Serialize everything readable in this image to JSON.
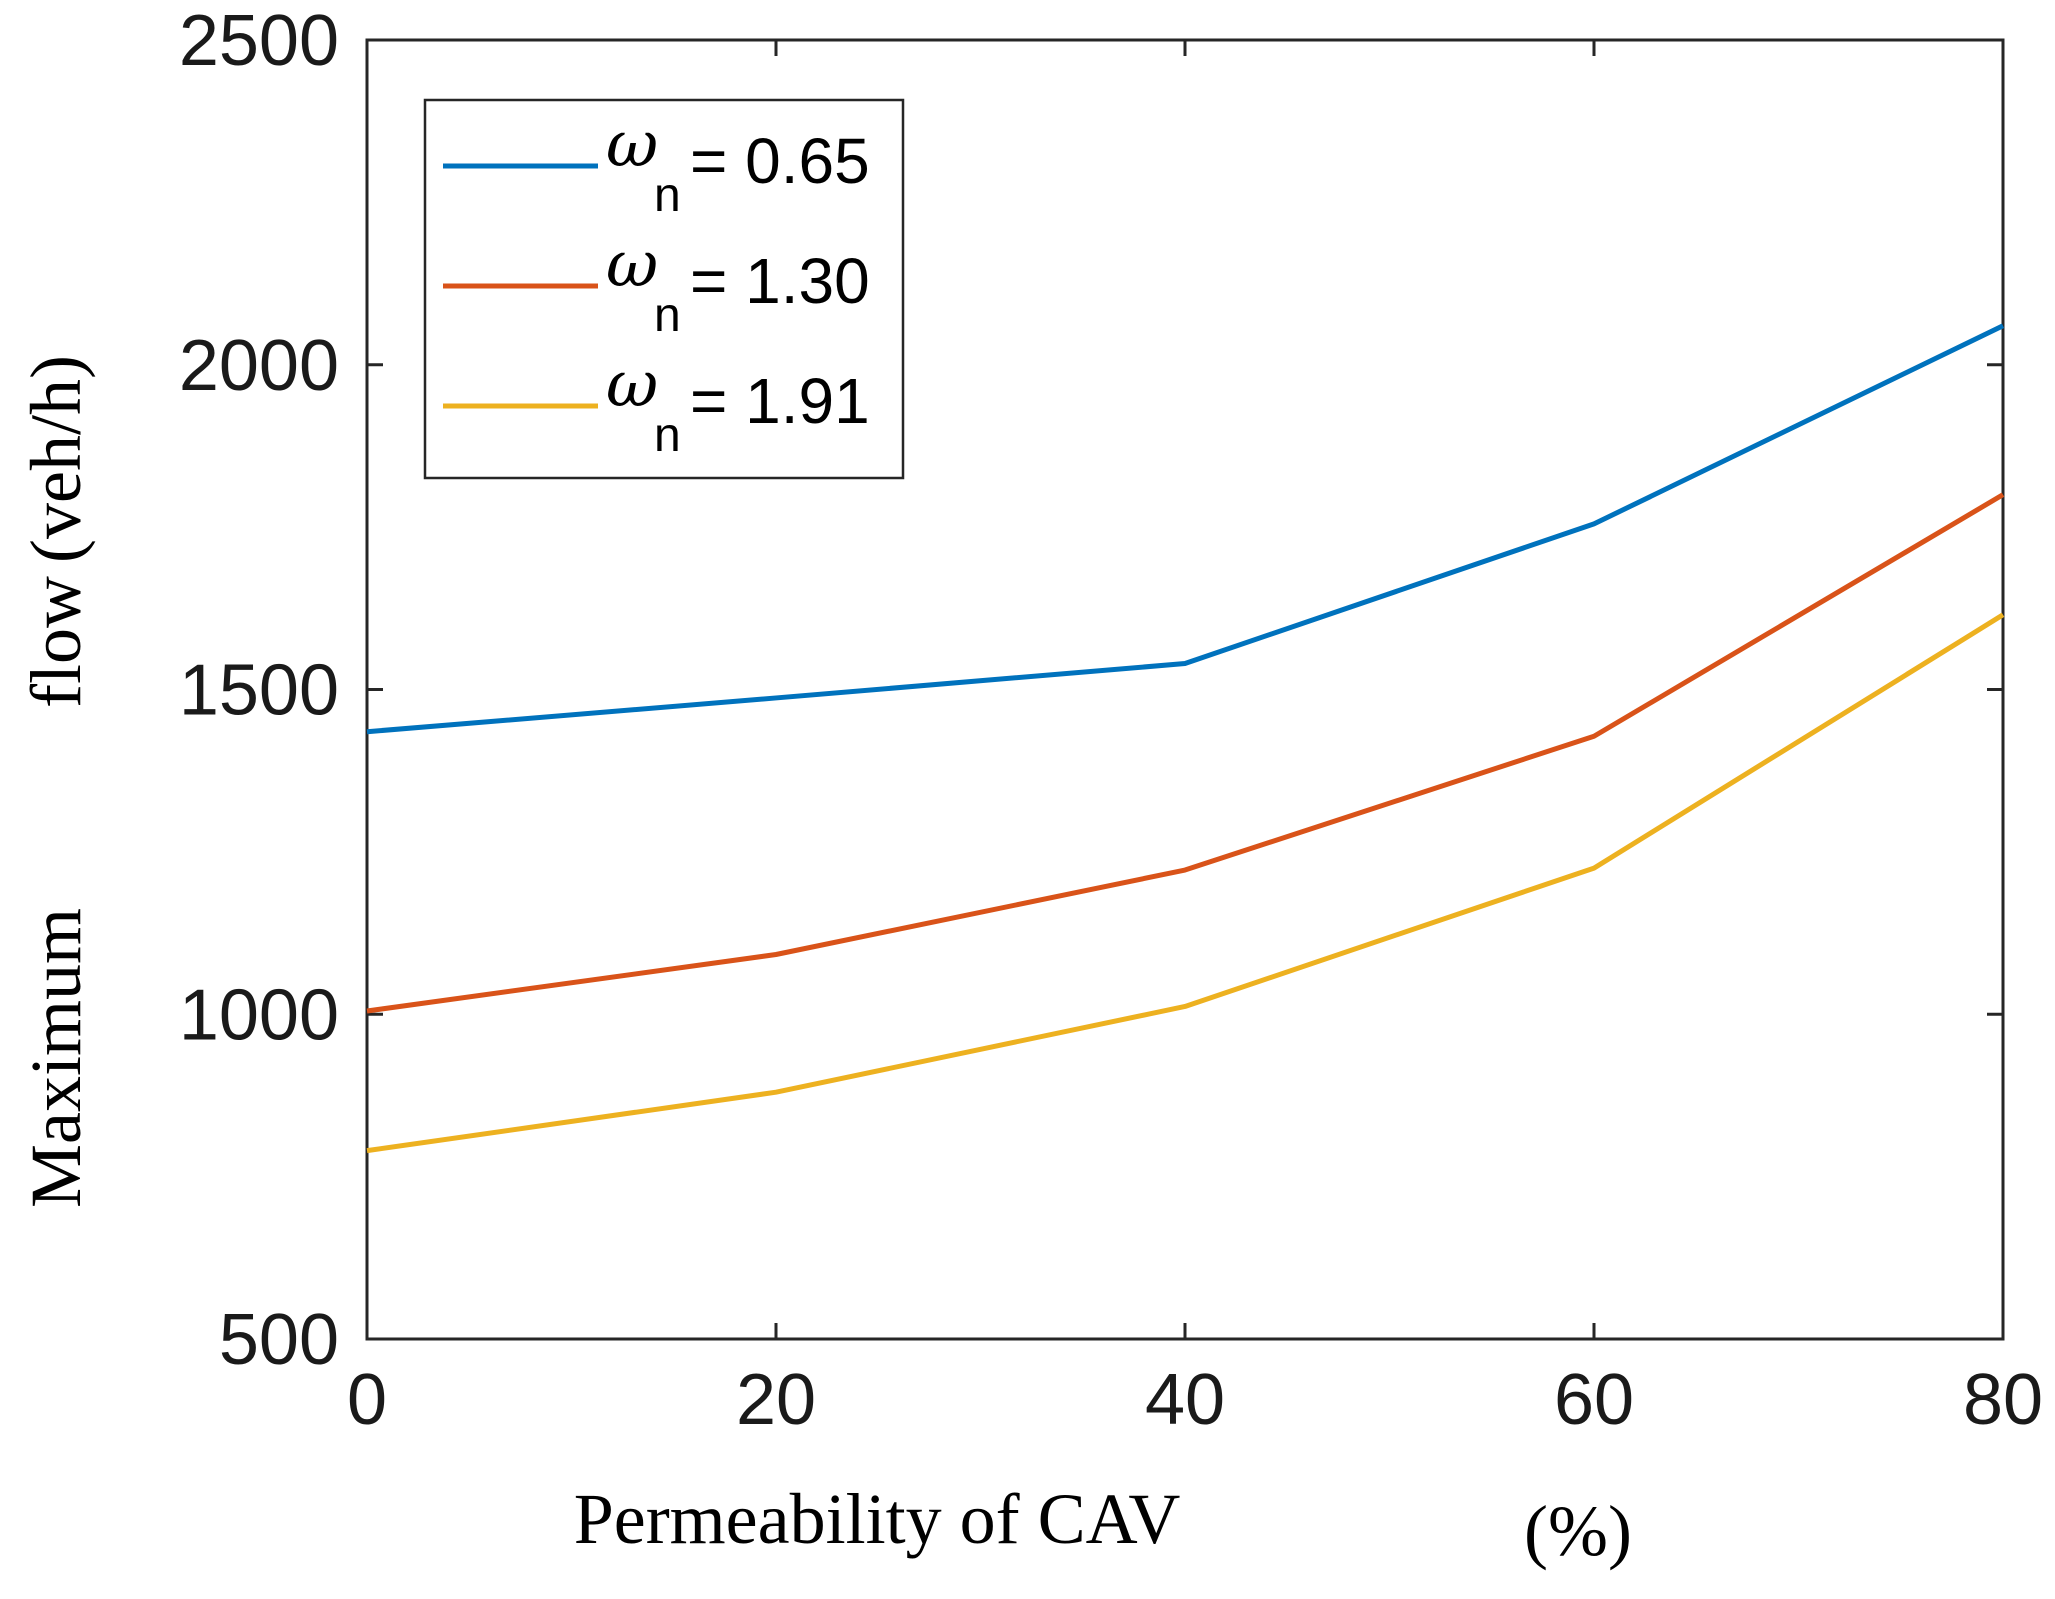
{
  "chart_data": {
    "type": "line",
    "title": "",
    "xlabel": "Permeability of CAV",
    "xlabel_unit": "(%)",
    "ylabel_parts": [
      "Maximum",
      "flow",
      "(veh/h)"
    ],
    "x": [
      0,
      20,
      40,
      60,
      80
    ],
    "xlim": [
      0,
      80
    ],
    "ylim": [
      500,
      2500
    ],
    "xticks": [
      "0",
      "20",
      "40",
      "60",
      "80"
    ],
    "yticks": [
      "500",
      "1000",
      "1500",
      "2000",
      "2500"
    ],
    "legend_position": "top-left",
    "series": [
      {
        "name": "ω_n = 0.65",
        "symbol": "ω",
        "subscript": "n",
        "label_value": "= 0.65",
        "color": "#0072BD",
        "values": [
          1435,
          1487,
          1540,
          1755,
          2060
        ]
      },
      {
        "name": "ω_n = 1.30",
        "symbol": "ω",
        "subscript": "n",
        "label_value": "= 1.30",
        "color": "#D95319",
        "values": [
          1005,
          1092,
          1222,
          1428,
          1800
        ]
      },
      {
        "name": "ω_n = 1.91",
        "symbol": "ω",
        "subscript": "n",
        "label_value": "= 1.91",
        "color": "#EDB120",
        "values": [
          790,
          880,
          1012,
          1225,
          1615
        ]
      }
    ]
  }
}
